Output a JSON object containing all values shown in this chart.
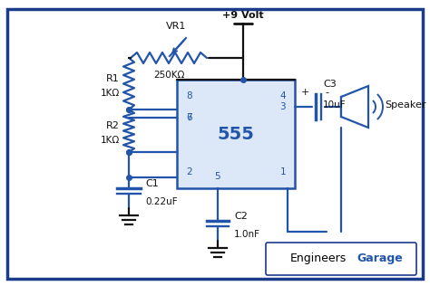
{
  "bg_color": "#ffffff",
  "border_color": "#1a3a8a",
  "wire_color": "#2255aa",
  "comp_color": "#2255aa",
  "text_color": "#2255aa",
  "black_wire": "#111111",
  "chip_color": "#2255aa",
  "chip_fill": "#dce8f8",
  "chip_label": "555",
  "vr1_label": "VR1",
  "vr1_value": "250KΩ",
  "r1_label": "R1",
  "r1_value": "1KΩ",
  "r2_label": "R2",
  "r2_value": "1KΩ",
  "c1_label": "C1",
  "c1_value": "0.22uF",
  "c2_label": "C2",
  "c2_value": "1.0nF",
  "c3_label": "C3",
  "c3_value": "10uF",
  "vcc_label": "+9 Volt",
  "speaker_label": "Speaker"
}
